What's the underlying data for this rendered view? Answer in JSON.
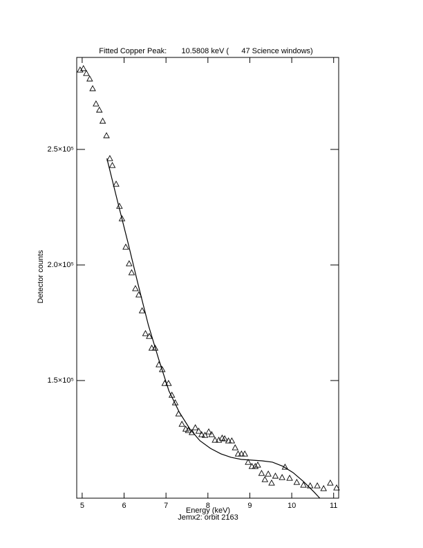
{
  "chart_data": {
    "type": "scatter",
    "title": "Fitted Copper Peak:       10.5808 keV (      47 Science windows)",
    "x_label": "Energy (keV)",
    "subtitle": "Jemx2: orbit 2163",
    "y_label": "Detector counts",
    "xlim": [
      4.87,
      11.12
    ],
    "ylim": [
      99100,
      289800
    ],
    "xticks": [
      5,
      6,
      7,
      8,
      9,
      10,
      11
    ],
    "yticks": [
      {
        "value": 150000,
        "label": "1.5×10⁵"
      },
      {
        "value": 200000,
        "label": "2.0×10⁵"
      },
      {
        "value": 250000,
        "label": "2.5×10⁵"
      }
    ],
    "series": [
      {
        "color": "#000000",
        "marker": "triangle",
        "x": [
          4.95,
          5.03,
          5.1,
          5.18,
          5.25,
          5.33,
          5.41,
          5.49,
          5.58,
          5.66,
          5.72,
          5.81,
          5.89,
          5.95,
          6.04,
          6.12,
          6.18,
          6.27,
          6.35,
          6.43,
          6.51,
          6.6,
          6.66,
          6.74,
          6.83,
          6.91,
          6.97,
          7.06,
          7.14,
          7.22,
          7.3,
          7.38,
          7.47,
          7.53,
          7.62,
          7.7,
          7.78,
          7.85,
          7.93,
          8.02,
          8.09,
          8.17,
          8.26,
          8.34,
          8.4,
          8.49,
          8.57,
          8.65,
          8.72,
          8.8,
          8.88,
          8.96,
          9.05,
          9.13,
          9.19,
          9.28,
          9.36,
          9.44,
          9.52,
          9.61,
          9.77,
          9.84,
          9.95,
          10.12,
          10.28,
          10.44,
          10.61,
          10.76,
          10.92,
          11.07
        ],
        "values": [
          284430,
          285030,
          282930,
          280540,
          276350,
          269760,
          267070,
          262280,
          255990,
          246110,
          243110,
          235030,
          225450,
          220060,
          207780,
          200600,
          196710,
          189820,
          187130,
          180240,
          170360,
          169160,
          164070,
          164070,
          156890,
          154790,
          148800,
          148800,
          143710,
          140420,
          135630,
          131140,
          129040,
          128440,
          127550,
          129640,
          128150,
          126650,
          126350,
          127850,
          126650,
          124250,
          124250,
          125150,
          124850,
          123950,
          123950,
          120960,
          118270,
          118270,
          118270,
          114680,
          112880,
          112880,
          113480,
          109890,
          107190,
          109590,
          105700,
          108700,
          108090,
          112580,
          107790,
          106000,
          104800,
          104500,
          104500,
          103300,
          105700,
          103600
        ]
      },
      {
        "color": "#000000",
        "marker": "line",
        "x": [
          5.59,
          5.84,
          6.09,
          6.33,
          6.58,
          6.83,
          7.07,
          7.32,
          7.57,
          7.81,
          8.06,
          8.31,
          8.55,
          8.8,
          9.05,
          9.29,
          9.54,
          9.79,
          10.03,
          10.28,
          10.53,
          10.67
        ],
        "values": [
          246110,
          227840,
          209880,
          191920,
          173950,
          158980,
          145510,
          136230,
          129040,
          123950,
          120660,
          118270,
          116770,
          115870,
          115570,
          115270,
          114680,
          112880,
          110190,
          106300,
          101810,
          99100
        ]
      }
    ]
  }
}
